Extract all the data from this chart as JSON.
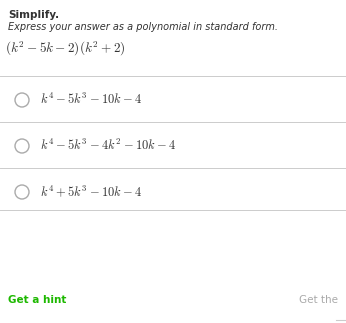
{
  "title_bold": "Simplify.",
  "subtitle_italic": "Express your answer as a polynomial in standard form.",
  "question": "$(k^2 - 5k - 2)(k^2 + 2)$",
  "answers": [
    "$k^4 - 5k^3 - 10k - 4$",
    "$k^4 - 5k^3 - 4k^2 - 10k - 4$",
    "$k^4 + 5k^3 - 10k - 4$"
  ],
  "hint_text": "Get a hint",
  "get_text": "Get the",
  "hint_color": "#1db800",
  "get_color": "#aaaaaa",
  "bg_color": "#ffffff",
  "text_color": "#333333",
  "line_color": "#cccccc",
  "circle_color": "#aaaaaa",
  "title_fontsize": 7.5,
  "subtitle_fontsize": 7.0,
  "question_fontsize": 9.5,
  "answer_fontsize": 9.0,
  "hint_fontsize": 7.5
}
